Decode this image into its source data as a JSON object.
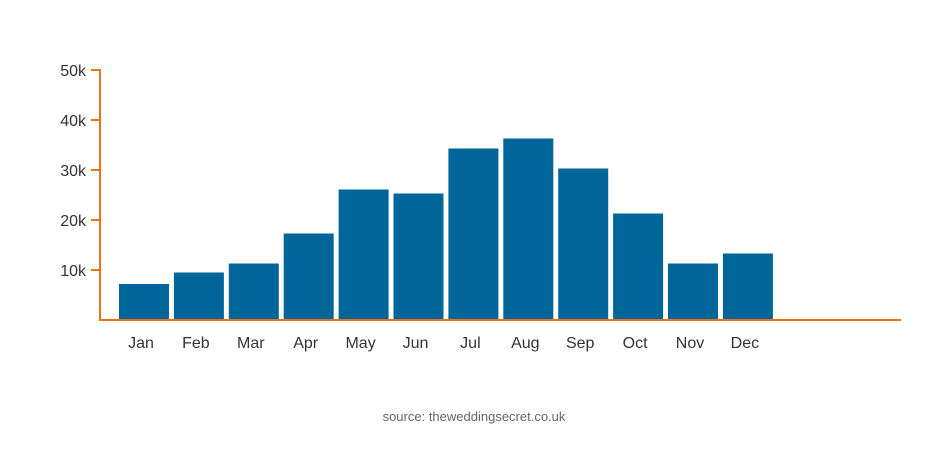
{
  "colors": {
    "bar": "#006699",
    "axis": "#E8731A",
    "text": "#333333",
    "source_text": "#666666"
  },
  "chart_data": {
    "type": "bar",
    "categories": [
      "Jan",
      "Feb",
      "Mar",
      "Apr",
      "May",
      "Jun",
      "Jul",
      "Aug",
      "Sep",
      "Oct",
      "Nov",
      "Dec"
    ],
    "values": [
      7200,
      9500,
      11300,
      17300,
      26100,
      25300,
      34300,
      36300,
      30300,
      21300,
      11300,
      13300
    ],
    "yticks": [
      10000,
      20000,
      30000,
      40000,
      50000
    ],
    "ytick_labels": [
      "10k",
      "20k",
      "30k",
      "40k",
      "50k"
    ],
    "ylim": [
      0,
      50000
    ],
    "title": "",
    "xlabel": "",
    "ylabel": "",
    "grid": false,
    "legend": "none"
  },
  "source": "source: theweddingsecret.co.uk"
}
